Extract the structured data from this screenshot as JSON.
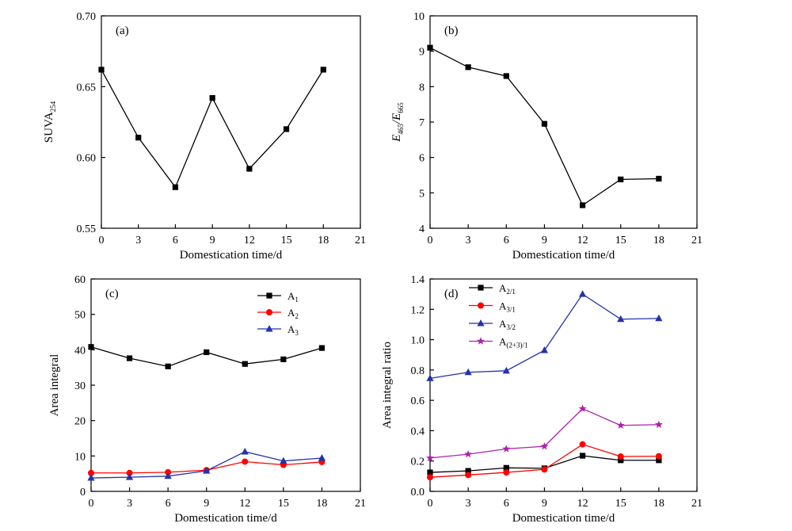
{
  "chart_data": [
    {
      "id": "a",
      "type": "line",
      "panel_label": "(a)",
      "xlabel": "Domestication time/d",
      "ylabel": {
        "main": "SUVA",
        "sub": "254"
      },
      "xlim": [
        0,
        21
      ],
      "ylim": [
        0.55,
        0.7
      ],
      "xticks": [
        "0",
        "3",
        "6",
        "9",
        "12",
        "15",
        "18",
        "21"
      ],
      "yticks": [
        "0.55",
        "0.60",
        "0.65",
        "0.70"
      ],
      "grid": false,
      "x": [
        0,
        3,
        6,
        9,
        12,
        15,
        18
      ],
      "series": [
        {
          "values": [
            0.662,
            0.614,
            0.579,
            0.642,
            0.592,
            0.62,
            0.662
          ],
          "color": "#000000",
          "marker": "square"
        }
      ]
    },
    {
      "id": "b",
      "type": "line",
      "panel_label": "(b)",
      "xlabel": "Domestication time/d",
      "ylabel": {
        "main1": "E",
        "sub1": "465",
        "main2": "/E",
        "sub2": "665"
      },
      "xlim": [
        0,
        21
      ],
      "ylim": [
        4,
        10
      ],
      "xticks": [
        "0",
        "3",
        "6",
        "9",
        "12",
        "15",
        "18",
        "21"
      ],
      "yticks": [
        "4",
        "5",
        "6",
        "7",
        "8",
        "9",
        "10"
      ],
      "grid": false,
      "x": [
        0,
        3,
        6,
        9,
        12,
        15,
        18
      ],
      "series": [
        {
          "values": [
            9.1,
            8.55,
            8.3,
            6.95,
            4.65,
            5.38,
            5.4
          ],
          "color": "#000000",
          "marker": "square"
        }
      ]
    },
    {
      "id": "c",
      "type": "line",
      "panel_label": "(c)",
      "xlabel": "Domestication time/d",
      "ylabel": {
        "main": "Area integral"
      },
      "xlim": [
        0,
        21
      ],
      "ylim": [
        0,
        60
      ],
      "xticks": [
        "0",
        "3",
        "6",
        "9",
        "12",
        "15",
        "18",
        "21"
      ],
      "yticks": [
        "0",
        "10",
        "20",
        "30",
        "40",
        "50",
        "60"
      ],
      "grid": false,
      "legend_position": "top-right",
      "x": [
        0,
        3,
        6,
        9,
        12,
        15,
        18
      ],
      "series": [
        {
          "name": "A",
          "sub": "1",
          "values": [
            40.8,
            37.6,
            35.3,
            39.3,
            36.0,
            37.3,
            40.5
          ],
          "color": "#000000",
          "marker": "square"
        },
        {
          "name": "A",
          "sub": "2",
          "values": [
            5.2,
            5.2,
            5.4,
            6.0,
            8.4,
            7.5,
            8.3
          ],
          "color": "#ff0000",
          "marker": "circle"
        },
        {
          "name": "A",
          "sub": "3",
          "values": [
            3.8,
            4.0,
            4.3,
            5.8,
            11.2,
            8.6,
            9.4
          ],
          "color": "#2233aa",
          "marker": "triangle"
        }
      ]
    },
    {
      "id": "d",
      "type": "line",
      "panel_label": "(d)",
      "xlabel": "Domestication time/d",
      "ylabel": {
        "main": "Area integral ratio"
      },
      "xlim": [
        0,
        21
      ],
      "ylim": [
        0,
        1.4
      ],
      "xticks": [
        "0",
        "3",
        "6",
        "9",
        "12",
        "15",
        "18",
        "21"
      ],
      "yticks": [
        "0.0",
        "0.2",
        "0.4",
        "0.6",
        "0.8",
        "1.0",
        "1.2",
        "1.4"
      ],
      "grid": false,
      "legend_position": "top-left",
      "x": [
        0,
        3,
        6,
        9,
        12,
        15,
        18
      ],
      "series": [
        {
          "name": "A",
          "sub": "2/1",
          "values": [
            0.125,
            0.135,
            0.155,
            0.152,
            0.235,
            0.205,
            0.205
          ],
          "color": "#000000",
          "marker": "square"
        },
        {
          "name": "A",
          "sub": "3/1",
          "values": [
            0.093,
            0.108,
            0.125,
            0.145,
            0.31,
            0.23,
            0.232
          ],
          "color": "#ff0000",
          "marker": "circle"
        },
        {
          "name": "A",
          "sub": "3/2",
          "values": [
            0.745,
            0.785,
            0.795,
            0.93,
            1.3,
            1.135,
            1.14
          ],
          "color": "#2233aa",
          "marker": "triangle"
        },
        {
          "name": "A",
          "sub": "(2+3)/1",
          "values": [
            0.22,
            0.245,
            0.28,
            0.297,
            0.545,
            0.435,
            0.44
          ],
          "color": "#aa22aa",
          "marker": "star"
        }
      ]
    }
  ]
}
